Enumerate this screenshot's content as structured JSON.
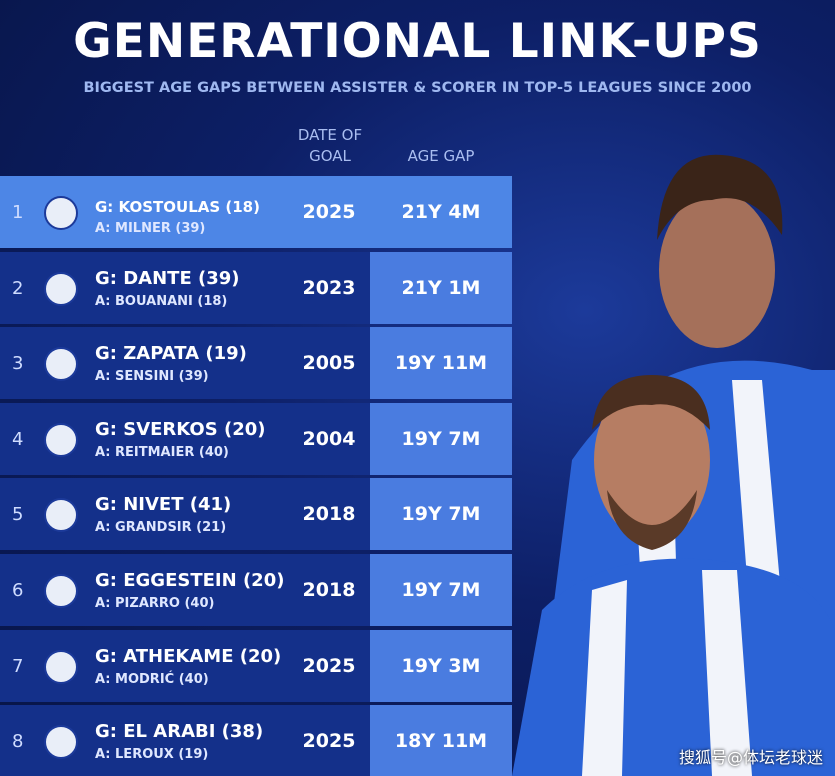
{
  "header": {
    "title": "GENERATIONAL LINK-UPS",
    "subtitle": "BIGGEST AGE GAPS BETWEEN ASSISTER & SCORER IN TOP-5 LEAGUES SINCE 2000"
  },
  "table": {
    "columns": [
      [
        "DATE OF",
        "GOAL"
      ],
      [
        "AGE GAP"
      ]
    ],
    "rows": [
      {
        "rank": 1,
        "scorer": "G: KOSTOULAS (18)",
        "assister": "A: MILNER (39)",
        "year": 2025,
        "gap": "21Y 4M"
      },
      {
        "rank": 2,
        "scorer": "G: DANTE (39)",
        "assister": "A: BOUANANI (18)",
        "year": 2023,
        "gap": "21Y 1M"
      },
      {
        "rank": 3,
        "scorer": "G: ZAPATA (19)",
        "assister": "A: SENSINI (39)",
        "year": 2005,
        "gap": "19Y 11M"
      },
      {
        "rank": 4,
        "scorer": "G: SVERKOS (20)",
        "assister": "A: REITMAIER (40)",
        "year": 2004,
        "gap": "19Y 7M"
      },
      {
        "rank": 5,
        "scorer": "G: NIVET (41)",
        "assister": "A: GRANDSIR (21)",
        "year": 2018,
        "gap": "19Y 7M"
      },
      {
        "rank": 6,
        "scorer": "G: EGGESTEIN (20)",
        "assister": "A: PIZARRO (40)",
        "year": 2018,
        "gap": "19Y 7M"
      },
      {
        "rank": 7,
        "scorer": "G: ATHEKAME (20)",
        "assister": "A: MODRIĆ (40)",
        "year": 2025,
        "gap": "19Y 3M"
      },
      {
        "rank": 8,
        "scorer": "G: EL ARABI (38)",
        "assister": "A: LEROUX (19)",
        "year": 2025,
        "gap": "18Y 11M"
      }
    ]
  },
  "watermark": "搜狐号@体坛老球迷"
}
